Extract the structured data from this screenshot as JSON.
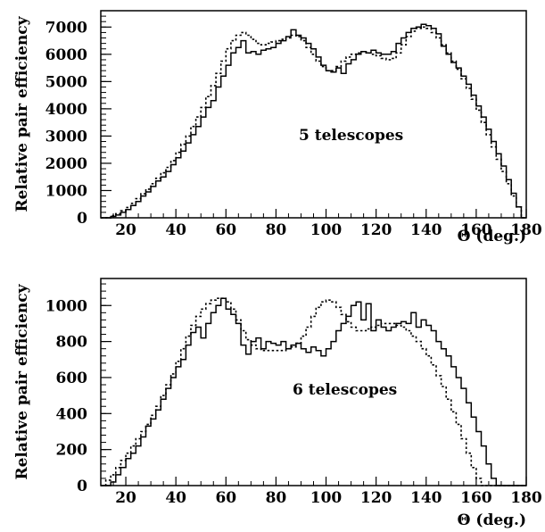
{
  "chart_data": [
    {
      "type": "line",
      "subtype": "histogram",
      "annotation": "5 telescopes",
      "xlabel": "Θ (deg.)",
      "ylabel": "Relative pair efficiency",
      "xlim": [
        10,
        180
      ],
      "ylim": [
        0,
        7600
      ],
      "x_ticks": [
        20,
        40,
        60,
        80,
        100,
        120,
        140,
        160,
        180
      ],
      "y_ticks": [
        0,
        1000,
        2000,
        3000,
        4000,
        5000,
        6000,
        7000
      ],
      "grid": false,
      "legend": "none",
      "series": [
        {
          "style": "solid",
          "x": [
            10,
            12,
            14,
            16,
            18,
            20,
            22,
            24,
            26,
            28,
            30,
            32,
            34,
            36,
            38,
            40,
            42,
            44,
            46,
            48,
            50,
            52,
            54,
            56,
            58,
            60,
            62,
            64,
            66,
            68,
            70,
            72,
            74,
            76,
            78,
            80,
            82,
            84,
            86,
            88,
            90,
            92,
            94,
            96,
            98,
            100,
            102,
            104,
            106,
            108,
            110,
            112,
            114,
            116,
            118,
            120,
            122,
            124,
            126,
            128,
            130,
            132,
            134,
            136,
            138,
            140,
            142,
            144,
            146,
            148,
            150,
            152,
            154,
            156,
            158,
            160,
            162,
            164,
            166,
            168,
            170,
            172,
            174,
            176,
            178
          ],
          "values": [
            0,
            0,
            50,
            100,
            200,
            300,
            450,
            600,
            800,
            950,
            1150,
            1350,
            1500,
            1700,
            1950,
            2200,
            2450,
            2750,
            3050,
            3350,
            3700,
            4050,
            4300,
            4800,
            5200,
            5600,
            6050,
            6250,
            6500,
            6050,
            6100,
            6000,
            6150,
            6200,
            6250,
            6400,
            6500,
            6650,
            6900,
            6700,
            6600,
            6400,
            6200,
            5900,
            5600,
            5400,
            5350,
            5500,
            5300,
            5650,
            5800,
            6000,
            6100,
            6050,
            6150,
            6050,
            6000,
            6000,
            6100,
            6400,
            6600,
            6800,
            6950,
            7000,
            7100,
            7050,
            6950,
            6750,
            6300,
            6000,
            5700,
            5500,
            5200,
            4900,
            4500,
            4100,
            3700,
            3250,
            2800,
            2350,
            1900,
            1400,
            900,
            400,
            0
          ]
        },
        {
          "style": "dashed",
          "x": [
            10,
            12,
            14,
            16,
            18,
            20,
            22,
            24,
            26,
            28,
            30,
            32,
            34,
            36,
            38,
            40,
            42,
            44,
            46,
            48,
            50,
            52,
            54,
            56,
            58,
            60,
            62,
            64,
            66,
            68,
            70,
            72,
            74,
            76,
            78,
            80,
            82,
            84,
            86,
            88,
            90,
            92,
            94,
            96,
            98,
            100,
            102,
            104,
            106,
            108,
            110,
            112,
            114,
            116,
            118,
            120,
            122,
            124,
            126,
            128,
            130,
            132,
            134,
            136,
            138,
            140,
            142,
            144,
            146,
            148,
            150,
            152,
            154,
            156,
            158,
            160,
            162,
            164,
            166,
            168,
            170,
            172,
            174,
            176,
            178
          ],
          "values": [
            0,
            0,
            80,
            150,
            260,
            380,
            530,
            700,
            880,
            1050,
            1250,
            1450,
            1650,
            1850,
            2100,
            2400,
            2700,
            3000,
            3350,
            3700,
            4050,
            4450,
            4850,
            5300,
            5750,
            6200,
            6500,
            6700,
            6800,
            6700,
            6550,
            6400,
            6350,
            6400,
            6450,
            6500,
            6550,
            6600,
            6700,
            6650,
            6500,
            6250,
            6000,
            5750,
            5550,
            5400,
            5400,
            5550,
            5750,
            5900,
            6000,
            6050,
            6100,
            6050,
            6000,
            5950,
            5850,
            5800,
            5850,
            6050,
            6350,
            6650,
            6850,
            6950,
            7000,
            6950,
            6800,
            6600,
            6350,
            6050,
            5750,
            5450,
            5100,
            4750,
            4350,
            3950,
            3500,
            3050,
            2600,
            2150,
            1700,
            1250,
            800,
            400,
            0
          ]
        }
      ]
    },
    {
      "type": "line",
      "subtype": "histogram",
      "annotation": "6 telescopes",
      "xlabel": "Θ (deg.)",
      "ylabel": "Relative pair efficiency",
      "xlim": [
        10,
        180
      ],
      "ylim": [
        0,
        1150
      ],
      "x_ticks": [
        20,
        40,
        60,
        80,
        100,
        120,
        140,
        160,
        180
      ],
      "y_ticks": [
        0,
        200,
        400,
        600,
        800,
        1000
      ],
      "grid": false,
      "legend": "none",
      "series": [
        {
          "style": "solid",
          "x": [
            10,
            12,
            14,
            16,
            18,
            20,
            22,
            24,
            26,
            28,
            30,
            32,
            34,
            36,
            38,
            40,
            42,
            44,
            46,
            48,
            50,
            52,
            54,
            56,
            58,
            60,
            62,
            64,
            66,
            68,
            70,
            72,
            74,
            76,
            78,
            80,
            82,
            84,
            86,
            88,
            90,
            92,
            94,
            96,
            98,
            100,
            102,
            104,
            106,
            108,
            110,
            112,
            114,
            116,
            118,
            120,
            122,
            124,
            126,
            128,
            130,
            132,
            134,
            136,
            138,
            140,
            142,
            144,
            146,
            148,
            150,
            152,
            154,
            156,
            158,
            160,
            162,
            164,
            166,
            168,
            170,
            172,
            174,
            176,
            178
          ],
          "values": [
            0,
            0,
            20,
            60,
            100,
            150,
            180,
            220,
            270,
            330,
            370,
            420,
            480,
            540,
            600,
            660,
            700,
            780,
            850,
            880,
            820,
            900,
            960,
            1000,
            1040,
            980,
            950,
            900,
            780,
            730,
            800,
            820,
            760,
            800,
            790,
            780,
            800,
            760,
            780,
            790,
            760,
            740,
            770,
            750,
            720,
            760,
            800,
            860,
            900,
            940,
            1000,
            1020,
            920,
            1010,
            860,
            920,
            880,
            860,
            880,
            900,
            910,
            900,
            960,
            880,
            920,
            890,
            860,
            800,
            760,
            720,
            660,
            600,
            540,
            460,
            380,
            300,
            220,
            120,
            40,
            0,
            0,
            0,
            0,
            0,
            0
          ]
        },
        {
          "style": "dashed",
          "x": [
            10,
            12,
            14,
            16,
            18,
            20,
            22,
            24,
            26,
            28,
            30,
            32,
            34,
            36,
            38,
            40,
            42,
            44,
            46,
            48,
            50,
            52,
            54,
            56,
            58,
            60,
            62,
            64,
            66,
            68,
            70,
            72,
            74,
            76,
            78,
            80,
            82,
            84,
            86,
            88,
            90,
            92,
            94,
            96,
            98,
            100,
            102,
            104,
            106,
            108,
            110,
            112,
            114,
            116,
            118,
            120,
            122,
            124,
            126,
            128,
            130,
            132,
            134,
            136,
            138,
            140,
            142,
            144,
            146,
            148,
            150,
            152,
            154,
            156,
            158,
            160,
            162,
            164,
            166,
            168,
            170,
            172,
            174,
            176,
            178
          ],
          "values": [
            0,
            30,
            60,
            100,
            140,
            180,
            220,
            260,
            300,
            340,
            390,
            440,
            500,
            560,
            620,
            690,
            760,
            830,
            890,
            940,
            980,
            1010,
            1030,
            1040,
            1040,
            1020,
            980,
            920,
            860,
            810,
            780,
            760,
            750,
            750,
            750,
            750,
            750,
            760,
            770,
            790,
            830,
            880,
            940,
            990,
            1020,
            1030,
            1020,
            990,
            950,
            910,
            880,
            860,
            860,
            870,
            880,
            890,
            900,
            900,
            900,
            890,
            880,
            860,
            830,
            800,
            760,
            720,
            670,
            610,
            550,
            480,
            410,
            340,
            260,
            180,
            100,
            40,
            0,
            0,
            0,
            0,
            0,
            0,
            0,
            0,
            0
          ]
        }
      ]
    }
  ]
}
